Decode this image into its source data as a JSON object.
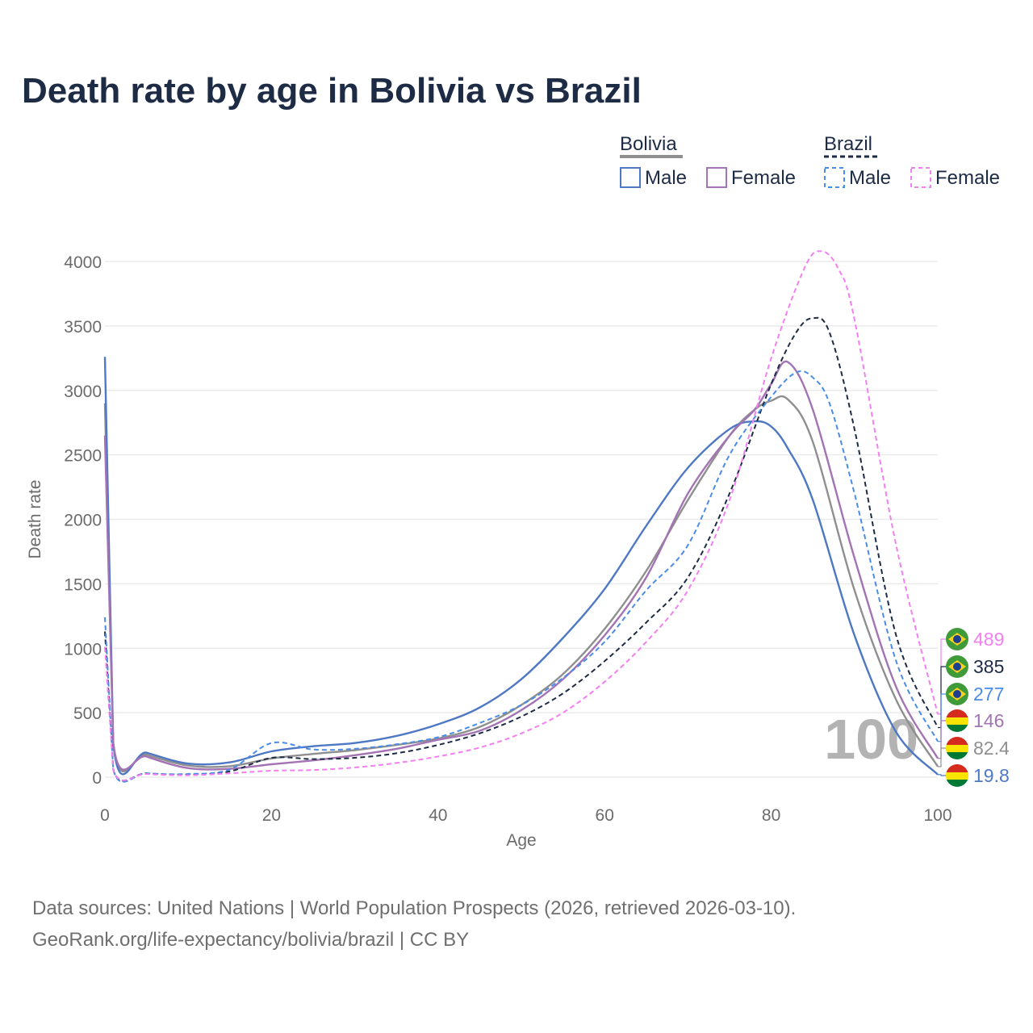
{
  "title": "Death rate by age in Bolivia vs Brazil",
  "footer": {
    "line1": "Data sources: United Nations | World Population Prospects (2026, retrieved 2026-03-10).",
    "line2": "GeoRank.org/life-expectancy/bolivia/brazil | CC BY"
  },
  "colors": {
    "bolivia_male": "#4e78c4",
    "bolivia_female": "#a373b4",
    "bolivia_total": "#8f8f8f",
    "brazil_male": "#4a8ce8",
    "brazil_female": "#f37ff0",
    "brazil_total": "#1d2b45",
    "grid": "#ebebeb",
    "watermark": "#b3b3b3"
  },
  "legend": {
    "bolivia": {
      "title": "Bolivia",
      "male": "Male",
      "female": "Female"
    },
    "brazil": {
      "title": "Brazil",
      "male": "Male",
      "female": "Female"
    }
  },
  "chart_data": {
    "type": "line",
    "title": "Death rate by age in Bolivia vs Brazil",
    "xlabel": "Age",
    "ylabel": "Death rate",
    "xlim": [
      0,
      100
    ],
    "ylim": [
      0,
      4000
    ],
    "xticks": [
      0,
      20,
      40,
      60,
      80,
      100
    ],
    "yticks": [
      0,
      500,
      1000,
      1500,
      2000,
      2500,
      3000,
      3500,
      4000
    ],
    "watermark": "100",
    "grid": true,
    "series": [
      {
        "name": "Bolivia Total",
        "country": "Bolivia",
        "sex": "Total",
        "style": "solid",
        "color_key": "bolivia_total",
        "end_label": "82.4",
        "x": [
          0,
          1,
          5,
          10,
          15,
          20,
          25,
          30,
          35,
          40,
          45,
          50,
          55,
          60,
          65,
          70,
          75,
          78,
          80,
          82,
          85,
          90,
          95,
          100
        ],
        "y": [
          2900,
          265,
          175,
          90,
          85,
          145,
          180,
          210,
          250,
          300,
          390,
          560,
          800,
          1150,
          1600,
          2150,
          2650,
          2850,
          2920,
          2930,
          2600,
          1450,
          600,
          82
        ]
      },
      {
        "name": "Bolivia Male",
        "country": "Bolivia",
        "sex": "Male",
        "style": "solid",
        "color_key": "bolivia_male",
        "end_label": "19.8",
        "x": [
          0,
          1,
          5,
          10,
          15,
          20,
          25,
          30,
          35,
          40,
          45,
          50,
          55,
          60,
          65,
          70,
          75,
          78,
          80,
          82,
          85,
          90,
          95,
          100
        ],
        "y": [
          3260,
          265,
          190,
          105,
          115,
          200,
          240,
          265,
          320,
          410,
          540,
          760,
          1080,
          1460,
          1950,
          2400,
          2700,
          2760,
          2720,
          2550,
          2150,
          1100,
          350,
          20
        ]
      },
      {
        "name": "Bolivia Female",
        "country": "Bolivia",
        "sex": "Female",
        "style": "solid",
        "color_key": "bolivia_female",
        "end_label": "146",
        "x": [
          0,
          1,
          5,
          10,
          15,
          20,
          25,
          30,
          35,
          40,
          45,
          50,
          55,
          60,
          65,
          70,
          75,
          78,
          80,
          82,
          85,
          90,
          95,
          100
        ],
        "y": [
          2650,
          265,
          160,
          70,
          65,
          100,
          130,
          170,
          220,
          290,
          360,
          520,
          760,
          1100,
          1550,
          2200,
          2650,
          2850,
          3050,
          3220,
          2850,
          1700,
          700,
          146
        ]
      },
      {
        "name": "Brazil Total",
        "country": "Brazil",
        "sex": "Total",
        "style": "dashed",
        "color_key": "brazil_total",
        "end_label": "385",
        "x": [
          0,
          1,
          5,
          10,
          15,
          20,
          25,
          30,
          35,
          40,
          45,
          50,
          55,
          60,
          65,
          70,
          75,
          80,
          83,
          85,
          87,
          90,
          95,
          100
        ],
        "y": [
          1130,
          60,
          30,
          20,
          45,
          150,
          140,
          150,
          185,
          250,
          340,
          470,
          650,
          900,
          1200,
          1550,
          2200,
          3050,
          3450,
          3560,
          3450,
          2700,
          1100,
          385
        ]
      },
      {
        "name": "Brazil Male",
        "country": "Brazil",
        "sex": "Male",
        "style": "dashed",
        "color_key": "brazil_male",
        "end_label": "277",
        "x": [
          0,
          1,
          5,
          10,
          15,
          20,
          25,
          30,
          35,
          40,
          45,
          50,
          55,
          60,
          65,
          70,
          75,
          80,
          83,
          85,
          87,
          90,
          95,
          100
        ],
        "y": [
          1240,
          60,
          30,
          25,
          60,
          265,
          215,
          220,
          255,
          310,
          420,
          560,
          770,
          1050,
          1450,
          1800,
          2500,
          2950,
          3140,
          3100,
          2900,
          2200,
          900,
          277
        ]
      },
      {
        "name": "Brazil Female",
        "country": "Brazil",
        "sex": "Female",
        "style": "dashed",
        "color_key": "brazil_female",
        "end_label": "489",
        "x": [
          0,
          1,
          5,
          10,
          15,
          20,
          25,
          30,
          35,
          40,
          45,
          50,
          55,
          60,
          65,
          70,
          75,
          80,
          84,
          86,
          88,
          90,
          95,
          100
        ],
        "y": [
          1010,
          55,
          25,
          15,
          30,
          50,
          55,
          75,
          110,
          160,
          230,
          340,
          500,
          740,
          1050,
          1450,
          2150,
          3250,
          3950,
          4080,
          3950,
          3550,
          1800,
          489
        ]
      }
    ]
  }
}
